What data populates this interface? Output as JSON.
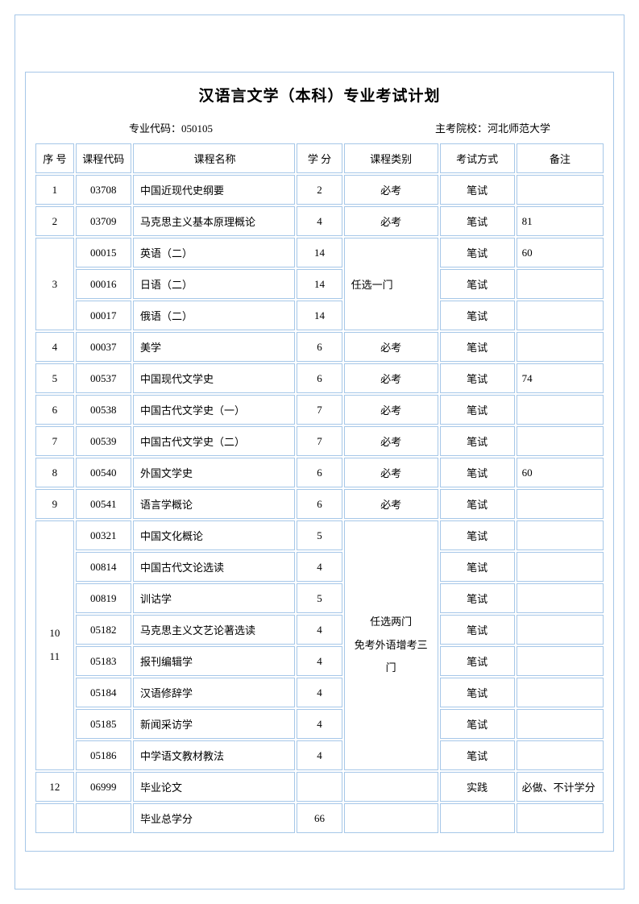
{
  "title": "汉语言文学（本科）专业考试计划",
  "meta": {
    "major_code_label": "专业代码：",
    "major_code": "050105",
    "school_label": "主考院校：",
    "school": "河北师范大学"
  },
  "headers": {
    "seq": "序 号",
    "code": "课程代码",
    "name": "课程名称",
    "credit": "学 分",
    "category": "课程类别",
    "method": "考试方式",
    "note": "备注"
  },
  "rows": {
    "r1": {
      "seq": "1",
      "code": "03708",
      "name": "中国近现代史纲要",
      "credit": "2",
      "category": "必考",
      "method": "笔试",
      "note": ""
    },
    "r2": {
      "seq": "2",
      "code": "03709",
      "name": "马克思主义基本原理概论",
      "credit": "4",
      "category": "必考",
      "method": "笔试",
      "note": "81"
    },
    "g3": {
      "seq": "3",
      "category": "任选一门",
      "a": {
        "code": "00015",
        "name": "英语（二）",
        "credit": "14",
        "method": "笔试",
        "note": "60"
      },
      "b": {
        "code": "00016",
        "name": "日语（二）",
        "credit": "14",
        "method": "笔试",
        "note": ""
      },
      "c": {
        "code": "00017",
        "name": "俄语（二）",
        "credit": "14",
        "method": "笔试",
        "note": ""
      }
    },
    "r4": {
      "seq": "4",
      "code": "00037",
      "name": "美学",
      "credit": "6",
      "category": "必考",
      "method": "笔试",
      "note": ""
    },
    "r5": {
      "seq": "5",
      "code": "00537",
      "name": "中国现代文学史",
      "credit": "6",
      "category": "必考",
      "method": "笔试",
      "note": "74"
    },
    "r6": {
      "seq": "6",
      "code": "00538",
      "name": "中国古代文学史（一）",
      "credit": "7",
      "category": "必考",
      "method": "笔试",
      "note": ""
    },
    "r7": {
      "seq": "7",
      "code": "00539",
      "name": "中国古代文学史（二）",
      "credit": "7",
      "category": "必考",
      "method": "笔试",
      "note": ""
    },
    "r8": {
      "seq": "8",
      "code": "00540",
      "name": "外国文学史",
      "credit": "6",
      "category": "必考",
      "method": "笔试",
      "note": "60"
    },
    "r9": {
      "seq": "9",
      "code": "00541",
      "name": "语言学概论",
      "credit": "6",
      "category": "必考",
      "method": "笔试",
      "note": ""
    },
    "g10": {
      "seq_line1": "10",
      "seq_line2": "11",
      "category_line1": "任选两门",
      "category_line2": "免考外语增考三门",
      "a": {
        "code": "00321",
        "name": "中国文化概论",
        "credit": "5",
        "method": "笔试",
        "note": ""
      },
      "b": {
        "code": "00814",
        "name": "中国古代文论选读",
        "credit": "4",
        "method": "笔试",
        "note": ""
      },
      "c": {
        "code": "00819",
        "name": "训诂学",
        "credit": "5",
        "method": "笔试",
        "note": ""
      },
      "d": {
        "code": "05182",
        "name": "马克思主义文艺论著选读",
        "credit": "4",
        "method": "笔试",
        "note": ""
      },
      "e": {
        "code": "05183",
        "name": "报刊编辑学",
        "credit": "4",
        "method": "笔试",
        "note": ""
      },
      "f": {
        "code": "05184",
        "name": "汉语修辞学",
        "credit": "4",
        "method": "笔试",
        "note": ""
      },
      "g": {
        "code": "05185",
        "name": "新闻采访学",
        "credit": "4",
        "method": "笔试",
        "note": ""
      },
      "h": {
        "code": "05186",
        "name": "中学语文教材教法",
        "credit": "4",
        "method": "笔试",
        "note": ""
      }
    },
    "r12": {
      "seq": "12",
      "code": "06999",
      "name": "毕业论文",
      "credit": "",
      "category": "",
      "method": "实践",
      "note": "必做、不计学分"
    },
    "total": {
      "seq": "",
      "code": "",
      "name": "毕业总学分",
      "credit": "66",
      "category": "",
      "method": "",
      "note": ""
    }
  },
  "styling": {
    "border_color": "#a6c7e8",
    "background_color": "#ffffff",
    "title_fontsize": 19,
    "body_fontsize": 13,
    "cell_padding": 8,
    "border_spacing": 2,
    "col_widths": {
      "seq": 44,
      "code": 64,
      "name": 186,
      "credit": 52,
      "category": 108,
      "method": 86,
      "note": 100
    }
  }
}
